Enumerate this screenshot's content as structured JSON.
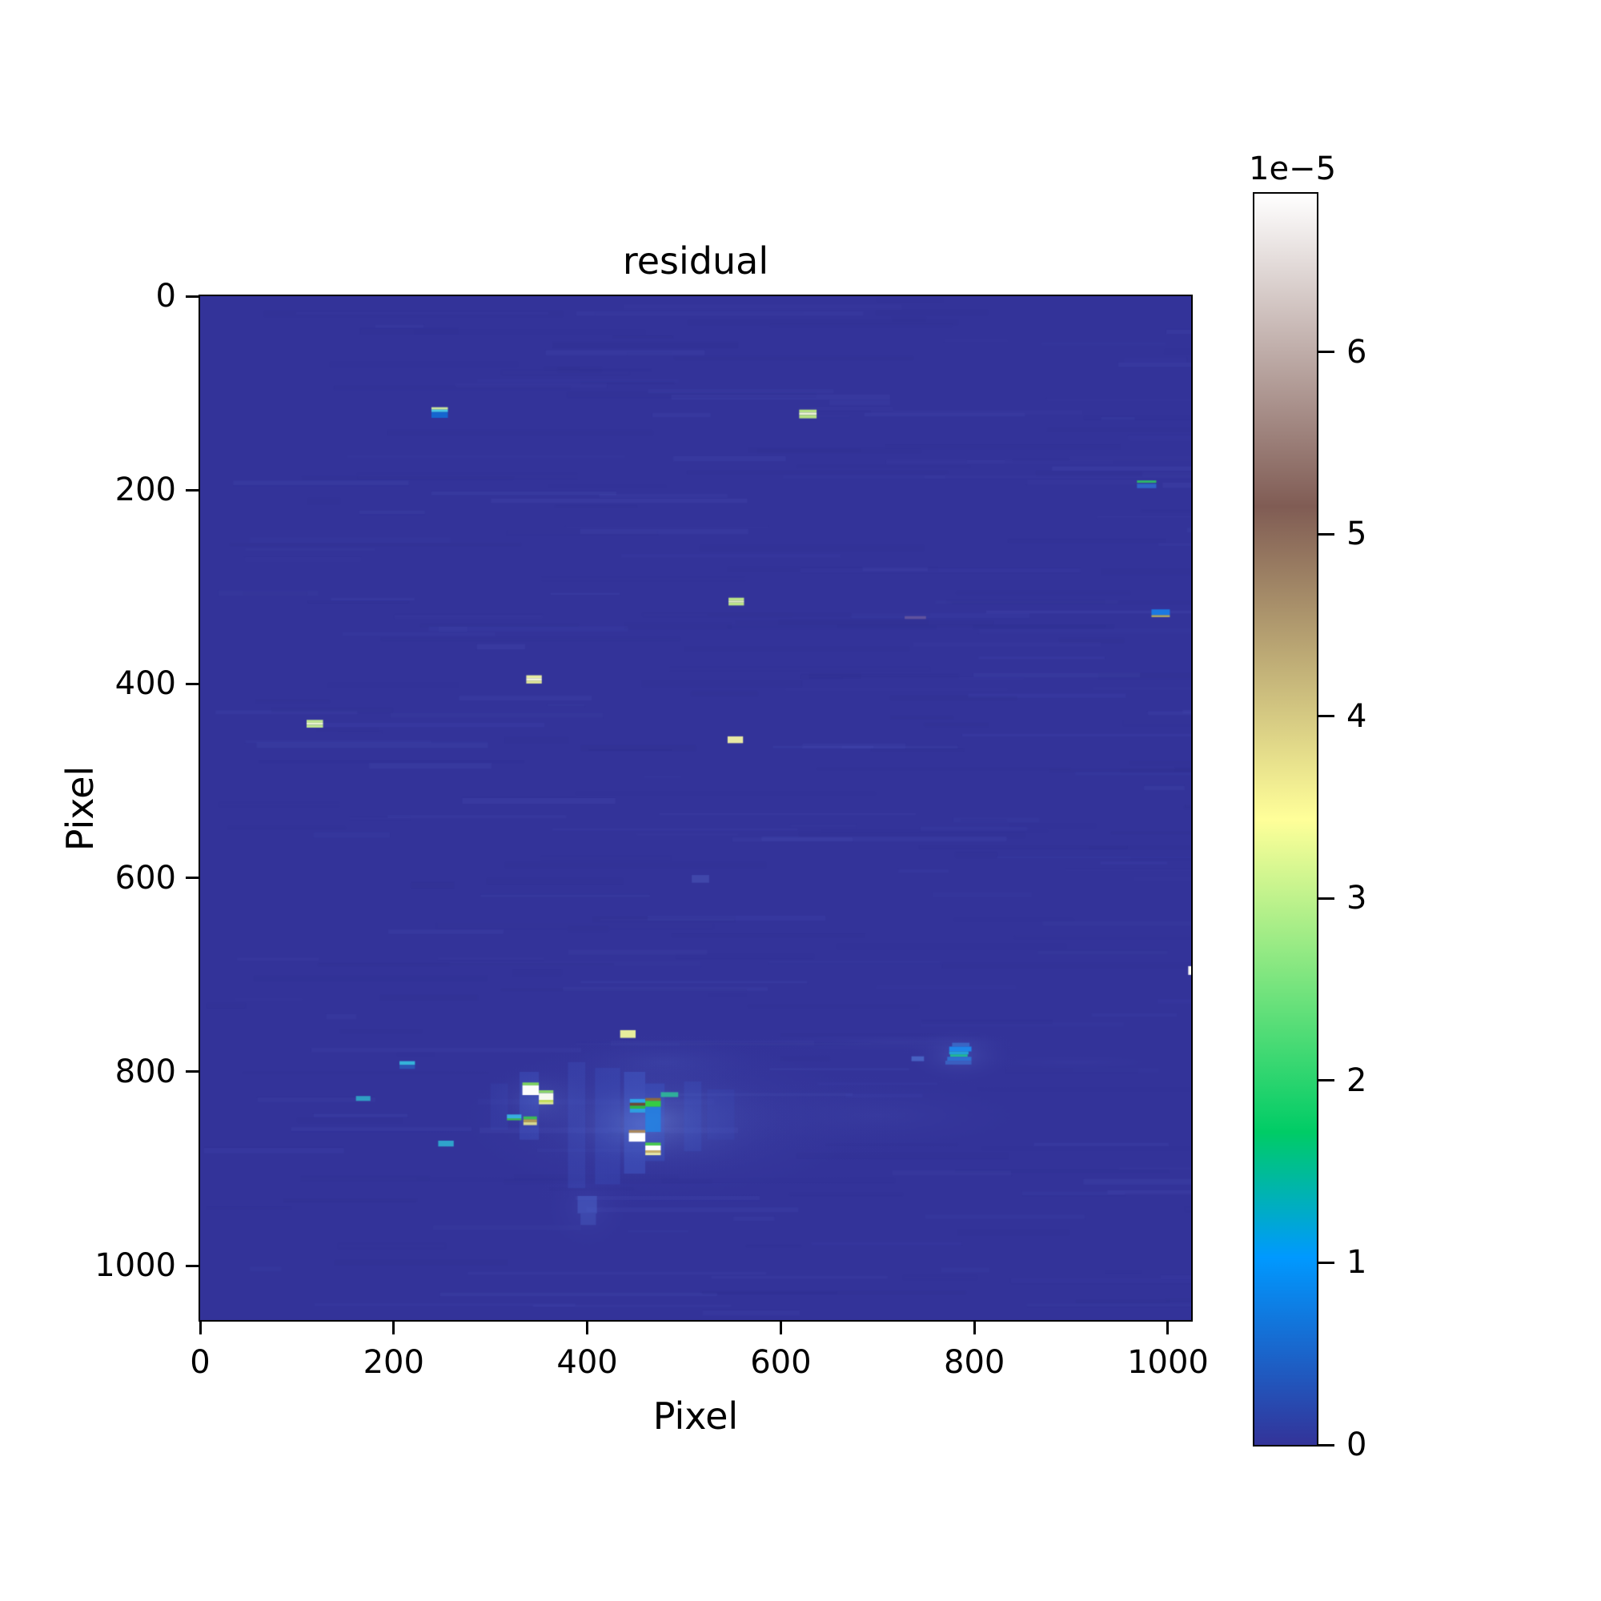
{
  "chart_data": {
    "type": "heatmap",
    "title": "residual",
    "xlabel": "Pixel",
    "ylabel": "Pixel",
    "x_range": [
      0,
      1024
    ],
    "y_range": [
      0,
      1056
    ],
    "y_axis_inverted": true,
    "x_ticks": [
      0,
      200,
      400,
      600,
      800,
      1000
    ],
    "y_ticks": [
      0,
      200,
      400,
      600,
      800,
      1000
    ],
    "grid": false,
    "background_value_color": "#333399",
    "colorbar": {
      "offset_label": "1e−5",
      "ticks": [
        0,
        1,
        2,
        3,
        4,
        5,
        6
      ],
      "vmin": 0,
      "vmax": 6.87,
      "colormap": "terrain",
      "position": "right",
      "stops": [
        [
          0.0,
          "#333399"
        ],
        [
          0.15,
          "#0099ff"
        ],
        [
          0.25,
          "#00cc66"
        ],
        [
          0.5,
          "#ffff99"
        ],
        [
          0.75,
          "#805c54"
        ],
        [
          1.0,
          "#ffffff"
        ]
      ]
    },
    "haze": [
      [
        480,
        848,
        265,
        100,
        "#6e8fe0",
        0.16
      ],
      [
        470,
        850,
        150,
        65,
        "#7ba4ec",
        0.2
      ],
      [
        455,
        855,
        75,
        45,
        "#8fb4f2",
        0.22
      ],
      [
        700,
        845,
        210,
        45,
        "#5f74cc",
        0.1
      ],
      [
        785,
        783,
        62,
        32,
        "#6f8fe2",
        0.22
      ],
      [
        400,
        940,
        55,
        55,
        "#5a6fd0",
        0.14
      ],
      [
        720,
        770,
        180,
        12,
        "#5a68c8",
        0.12
      ],
      [
        350,
        830,
        60,
        40,
        "#7ba4ec",
        0.18
      ],
      [
        480,
        790,
        130,
        32,
        "#6080d8",
        0.13
      ],
      [
        905,
        790,
        120,
        10,
        "#5a68c8",
        0.08
      ]
    ],
    "features": [
      [
        438,
        800,
        22,
        105,
        "rgba(70,110,220,0.32)"
      ],
      [
        460,
        812,
        20,
        80,
        "rgba(60,100,215,0.28)"
      ],
      [
        380,
        790,
        18,
        130,
        "rgba(70,100,210,0.20)"
      ],
      [
        330,
        800,
        20,
        70,
        "rgba(70,105,215,0.26)"
      ],
      [
        500,
        810,
        18,
        72,
        "rgba(65,95,205,0.22)"
      ],
      [
        524,
        818,
        28,
        52,
        "rgba(60,85,195,0.18)"
      ],
      [
        300,
        812,
        18,
        48,
        "rgba(60,85,195,0.16)"
      ],
      [
        408,
        796,
        26,
        120,
        "rgba(64,96,208,0.22)"
      ],
      [
        239,
        114.5,
        17,
        2.5,
        "#cde79c"
      ],
      [
        239,
        117,
        17,
        2.5,
        "#49c8e8"
      ],
      [
        239,
        119.5,
        17,
        6,
        "#1565cf"
      ],
      [
        619,
        117,
        18,
        3,
        "#b5e283"
      ],
      [
        619,
        120,
        18,
        2.5,
        "#ecf4d4"
      ],
      [
        619,
        122.5,
        18,
        3.5,
        "#b5e283"
      ],
      [
        968,
        190,
        20,
        2.5,
        "#2db569"
      ],
      [
        968,
        193.5,
        20,
        4.5,
        "#2f63c8"
      ],
      [
        546,
        311,
        16,
        3,
        "#bce488"
      ],
      [
        546,
        314,
        16,
        2,
        "#e6f2c2"
      ],
      [
        546,
        316,
        16,
        3,
        "#bce488"
      ],
      [
        983,
        323,
        19,
        6,
        "#1b79e2"
      ],
      [
        983,
        329,
        19,
        2,
        "#b3ab62"
      ],
      [
        337,
        391,
        16,
        3,
        "#e7eda2"
      ],
      [
        337,
        394,
        16,
        2.5,
        "#f4f6d8"
      ],
      [
        337,
        396.5,
        16,
        3,
        "#dfe698"
      ],
      [
        110,
        437,
        17,
        3,
        "#c1e792"
      ],
      [
        110,
        440,
        17,
        2,
        "#eaf4d2"
      ],
      [
        110,
        442,
        17,
        3,
        "#c1e792"
      ],
      [
        545,
        454,
        16,
        7,
        "#e9e9a4"
      ],
      [
        1021,
        691,
        10,
        9,
        "#f7f7f5"
      ],
      [
        434,
        757,
        16,
        8,
        "#e7ee9c"
      ],
      [
        206,
        789,
        16,
        4,
        "#35b4da"
      ],
      [
        206,
        793,
        16,
        4,
        "#2c55b4"
      ],
      [
        777,
        770,
        18,
        4,
        "#3a66c4"
      ],
      [
        774,
        774,
        23,
        5,
        "#1f86ea"
      ],
      [
        774,
        779,
        20,
        3,
        "#23a0d8"
      ],
      [
        775,
        782,
        18,
        2.5,
        "#23b795"
      ],
      [
        772,
        784.5,
        25,
        4,
        "#2e6fd0"
      ],
      [
        770,
        788.5,
        27,
        4,
        "#3a5fc0"
      ],
      [
        735,
        784,
        13,
        5,
        "#4761c2"
      ],
      [
        161,
        825,
        15,
        5,
        "#2f9fc4"
      ],
      [
        333,
        811,
        17,
        3,
        "#7fd45f"
      ],
      [
        333,
        814,
        17,
        10,
        "#fcfcfc"
      ],
      [
        350,
        819,
        15,
        3,
        "#8ad468"
      ],
      [
        350,
        822,
        15,
        7,
        "#f6f9ee"
      ],
      [
        350,
        829,
        15,
        2.5,
        "#c6e05c"
      ],
      [
        350,
        831.5,
        15,
        2,
        "#e4ef9a"
      ],
      [
        317,
        844,
        15,
        4,
        "#38aee0"
      ],
      [
        317,
        848,
        15,
        2,
        "#3dbb55"
      ],
      [
        334,
        846,
        14,
        3,
        "#3dbb55"
      ],
      [
        334,
        849,
        14,
        3,
        "#b09a55"
      ],
      [
        334,
        852,
        14,
        3,
        "#d8d890"
      ],
      [
        246,
        871,
        16,
        6,
        "#2fa3cc"
      ],
      [
        476,
        821,
        18,
        5,
        "#2fae9a"
      ],
      [
        460,
        836,
        16,
        26,
        "rgba(30,136,232,0.75)"
      ],
      [
        444,
        828,
        16,
        4,
        "#30a7e8"
      ],
      [
        444,
        832,
        16,
        3,
        "#6b4a33"
      ],
      [
        444,
        835,
        16,
        3,
        "#2fb944"
      ],
      [
        444,
        838,
        16,
        4,
        "#2e9fe0"
      ],
      [
        460,
        827,
        16,
        3,
        "#8a6a40"
      ],
      [
        460,
        830,
        16,
        6,
        "#35cc44"
      ],
      [
        443,
        860,
        17,
        3,
        "#a8885f"
      ],
      [
        443,
        863,
        17,
        9,
        "#ffffff"
      ],
      [
        460,
        873,
        16,
        3,
        "#4aca50"
      ],
      [
        460,
        876,
        16,
        5,
        "#fefefe"
      ],
      [
        460,
        881,
        16,
        2.5,
        "#c8b06a"
      ],
      [
        460,
        883.5,
        16,
        2.5,
        "#eae9a8"
      ],
      [
        390,
        928,
        20,
        18,
        "rgba(80,110,210,0.40)"
      ],
      [
        393,
        946,
        16,
        12,
        "rgba(80,110,210,0.30)"
      ],
      [
        728,
        330,
        22,
        3,
        "rgba(150,120,160,0.45)"
      ],
      [
        508,
        597,
        18,
        8,
        "rgba(80,95,190,0.45)"
      ]
    ],
    "noise": {
      "seed": 7,
      "count": 320,
      "light": "#5a66cc",
      "dark": "#2b2d85",
      "min_alpha": 0.03,
      "alpha_spread": 0.09
    }
  }
}
